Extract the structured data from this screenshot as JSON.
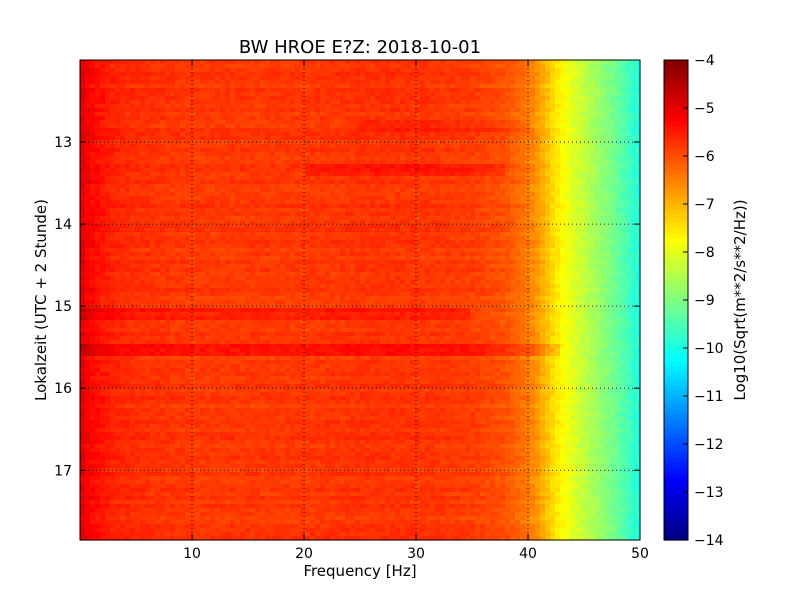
{
  "chart_data": {
    "type": "heatmap",
    "title": "BW HROE E?Z: 2018-10-01",
    "xlabel": "Frequency [Hz]",
    "ylabel": "Lokalzeit (UTC + 2 Stunde)",
    "xlim": [
      0,
      50
    ],
    "ylim": [
      17.85,
      12.0
    ],
    "y_inverted": true,
    "x_ticks": [
      10,
      20,
      30,
      40,
      50
    ],
    "y_ticks": [
      13,
      14,
      15,
      16,
      17
    ],
    "grid": true,
    "colormap": "jet",
    "colorbar": {
      "label": "Log10(Sqrt(m**2/s**2/Hz))",
      "range": [
        -14,
        -4
      ],
      "ticks": [
        -4,
        -5,
        -6,
        -7,
        -8,
        -9,
        -10,
        -11,
        -12,
        -13,
        -14
      ]
    },
    "spectrum_profile": {
      "frequency_hz": [
        0,
        1,
        3,
        5,
        10,
        15,
        20,
        25,
        30,
        35,
        38,
        40,
        41,
        42,
        43,
        44,
        45,
        46,
        47,
        48,
        49,
        50
      ],
      "log10_amplitude": [
        -5.0,
        -5.3,
        -5.6,
        -5.7,
        -5.8,
        -5.8,
        -5.8,
        -5.75,
        -5.75,
        -5.85,
        -6.05,
        -6.45,
        -6.8,
        -7.3,
        -7.7,
        -8.05,
        -8.35,
        -8.65,
        -8.95,
        -9.25,
        -9.6,
        -10.0
      ]
    },
    "features": [
      {
        "hour": 15.1,
        "f_min": 0,
        "f_max": 35,
        "delta_log10": 0.3
      },
      {
        "hour": 15.55,
        "f_min": 0,
        "f_max": 43,
        "delta_log10": 0.35
      },
      {
        "hour": 13.35,
        "f_min": 20,
        "f_max": 38,
        "delta_log10": 0.25
      },
      {
        "hour": 12.8,
        "f_min": 25,
        "f_max": 40,
        "delta_log10": 0.2
      }
    ],
    "colors": {
      "background": "#ffffff",
      "axes": "#000000",
      "grid": "#000000"
    }
  }
}
